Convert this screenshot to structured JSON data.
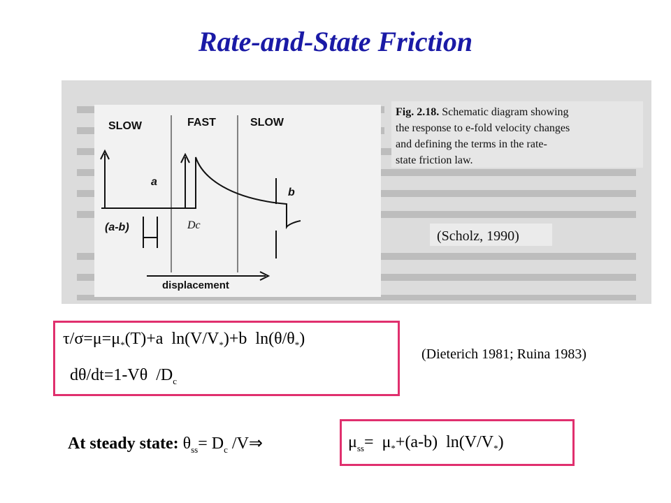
{
  "header": {
    "title": "Rate-and-State Friction"
  },
  "figure": {
    "labels": {
      "slow_left": "SLOW",
      "fast": "FAST",
      "slow_right": "SLOW",
      "a": "a",
      "b": "b",
      "a_minus_b": "(a-b)",
      "dc": "Dc",
      "displacement": "displacement"
    },
    "caption": {
      "number": "Fig. 2.18.",
      "text": [
        "Schematic diagram showing",
        "the response to e-fold velocity changes",
        "and defining the terms in the rate-",
        "state friction law."
      ]
    },
    "source": "(Scholz, 1990)"
  },
  "equations": {
    "law": [
      "τ/σ=μ=μ",
      "*",
      "(T)+a  ln(V/V",
      "*",
      ")+b  ln(θ/θ",
      "*",
      ")"
    ],
    "evolution": [
      "dθ/dt=1-Vθ  /D",
      "c"
    ],
    "references": "(Dieterich 1981; Ruina 1983)"
  },
  "steady_state": {
    "lead": "At steady state: ",
    "theta": [
      "θ",
      "ss",
      "= D",
      "c",
      " /V⇒"
    ],
    "mu": [
      "μ",
      "ss",
      "=  μ",
      "*",
      "+(a-b)  ln(V/V",
      "*",
      ")"
    ]
  }
}
